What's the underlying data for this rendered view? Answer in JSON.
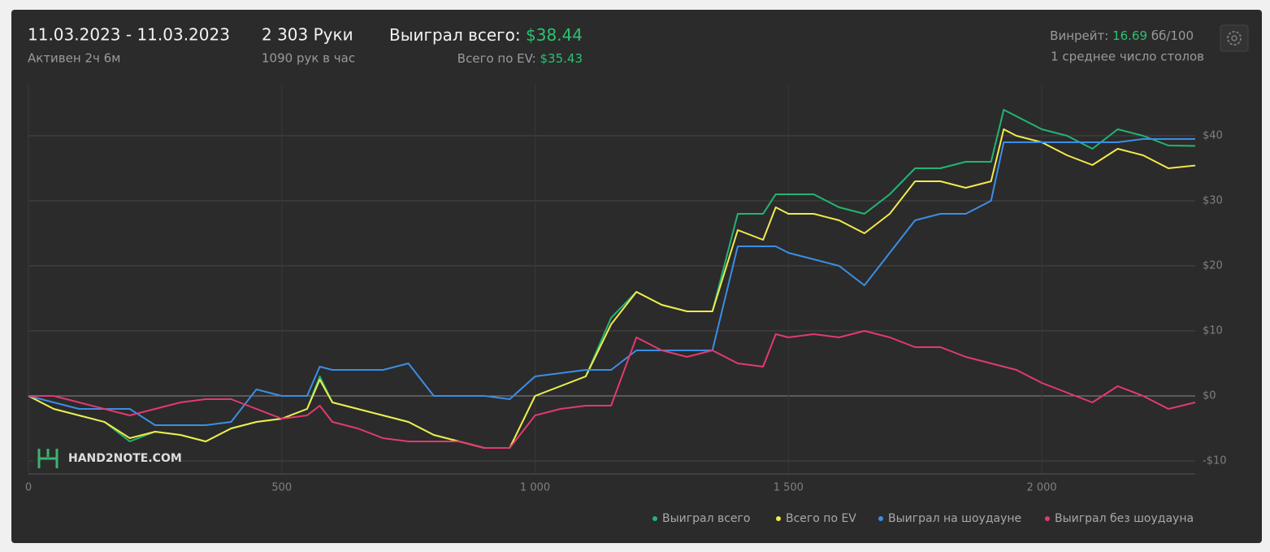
{
  "header": {
    "date_range": "11.03.2023 - 11.03.2023",
    "active": "Активен 2ч 6м",
    "hands": "2 303 Руки",
    "hands_per_hour": "1090 рук в час",
    "won_label": "Выиграл всего:",
    "won_value": "$38.44",
    "ev_label": "Всего по EV:",
    "ev_value": "$35.43",
    "winrate_label": "Винрейт:",
    "winrate_value": "16.69",
    "winrate_unit": "бб/100",
    "tables": "1 среднее число столов"
  },
  "watermark": "HAND2NOTE.COM",
  "chart_data": {
    "type": "line",
    "x": [
      0,
      50,
      100,
      150,
      200,
      250,
      300,
      350,
      400,
      450,
      500,
      550,
      575,
      600,
      650,
      700,
      750,
      800,
      850,
      900,
      950,
      1000,
      1050,
      1100,
      1150,
      1200,
      1250,
      1300,
      1350,
      1400,
      1450,
      1475,
      1500,
      1550,
      1600,
      1650,
      1700,
      1750,
      1800,
      1850,
      1900,
      1925,
      1950,
      2000,
      2050,
      2100,
      2150,
      2200,
      2250,
      2303
    ],
    "series": [
      {
        "name": "Выиграл всего",
        "color": "#22b573",
        "values": [
          0,
          -2,
          -3,
          -4,
          -7,
          -5.5,
          -6,
          -7,
          -5,
          -4,
          -3.5,
          -2,
          3,
          -1,
          -2,
          -3,
          -4,
          -6,
          -7,
          -8,
          -8,
          0,
          1.5,
          3,
          12,
          16,
          14,
          13,
          13,
          28,
          28,
          31,
          31,
          31,
          29,
          28,
          31,
          35,
          35,
          36,
          36,
          44,
          43,
          41,
          40,
          38,
          41,
          40,
          38.5,
          38.44
        ]
      },
      {
        "name": "Всего по EV",
        "color": "#f2ea4b",
        "values": [
          0,
          -2,
          -3,
          -4,
          -6.5,
          -5.5,
          -6,
          -7,
          -5,
          -4,
          -3.5,
          -2,
          2.5,
          -1,
          -2,
          -3,
          -4,
          -6,
          -7,
          -8,
          -8,
          0,
          1.5,
          3,
          11,
          16,
          14,
          13,
          13,
          25.5,
          24,
          29,
          28,
          28,
          27,
          25,
          28,
          33,
          33,
          32,
          33,
          41,
          40,
          39,
          37,
          35.5,
          38,
          37,
          35,
          35.43
        ]
      },
      {
        "name": "Выиграл на шоудауне",
        "color": "#3a8ee6",
        "values": [
          0,
          -1,
          -2,
          -2,
          -2,
          -4.5,
          -4.5,
          -4.5,
          -4,
          1,
          0,
          0,
          4.5,
          4,
          4,
          4,
          5,
          0,
          0,
          0,
          -0.5,
          3,
          3.5,
          4,
          4,
          7,
          7,
          7,
          7,
          23,
          23,
          23,
          22,
          21,
          20,
          17,
          22,
          27,
          28,
          28,
          30,
          39,
          39,
          39,
          39,
          39,
          39,
          39.5,
          39.5,
          39.5
        ]
      },
      {
        "name": "Выиграл без шоудауна",
        "color": "#e23a6e",
        "values": [
          0,
          0,
          -1,
          -2,
          -3,
          -2,
          -1,
          -0.5,
          -0.5,
          -2,
          -3.5,
          -3,
          -1.5,
          -4,
          -5,
          -6.5,
          -7,
          -7,
          -7,
          -8,
          -8,
          -3,
          -2,
          -1.5,
          -1.5,
          9,
          7,
          6,
          7,
          5,
          4.5,
          9.5,
          9,
          9.5,
          9,
          10,
          9,
          7.5,
          7.5,
          6,
          5,
          4.5,
          4,
          2,
          0.5,
          -1,
          1.5,
          0,
          -2,
          -1
        ]
      }
    ],
    "xlim": [
      0,
      2303
    ],
    "xticks": [
      0,
      500,
      {
        "value": 1000,
        "label": "1 000"
      },
      {
        "value": 1500,
        "label": "1 500"
      },
      {
        "value": 2000,
        "label": "2 000"
      }
    ],
    "ylim": [
      -12,
      48
    ],
    "yticks": [
      {
        "value": -10,
        "label": "-$10"
      },
      {
        "value": 0,
        "label": "$0"
      },
      {
        "value": 10,
        "label": "$10"
      },
      {
        "value": 20,
        "label": "$20"
      },
      {
        "value": 30,
        "label": "$30"
      },
      {
        "value": 40,
        "label": "$40"
      }
    ],
    "grid": true,
    "legend": "bottom-right"
  }
}
